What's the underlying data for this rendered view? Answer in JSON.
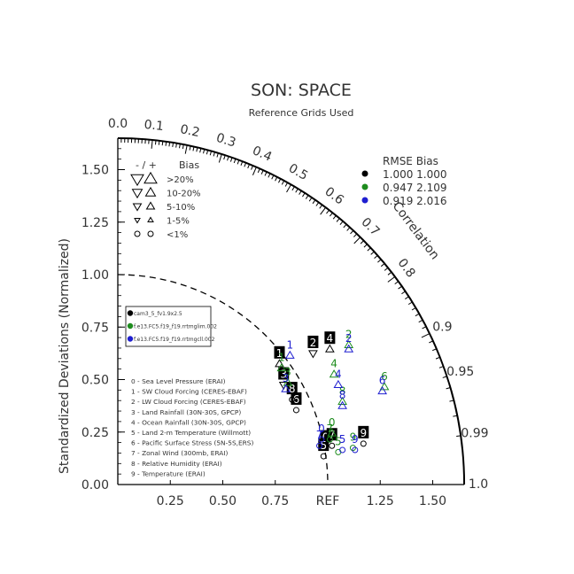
{
  "chart_data": {
    "type": "scatter",
    "title": "SON: SPACE",
    "subtitle": "Reference Grids Used",
    "ylabel": "Standardized Deviations (Normalized)",
    "correlation_label": "Correlation",
    "ref_label": "REF",
    "max_sd": 1.65,
    "ref_sd": 1.0,
    "y_ticks": [
      "0.00",
      "0.25",
      "0.50",
      "0.75",
      "1.00",
      "1.25",
      "1.50"
    ],
    "x_ticks": [
      {
        "v": 0.25,
        "t": "0.25"
      },
      {
        "v": 0.5,
        "t": "0.50"
      },
      {
        "v": 0.75,
        "t": "0.75"
      },
      {
        "v": 1.25,
        "t": "1.25"
      },
      {
        "v": 1.5,
        "t": "1.50"
      }
    ],
    "corr_ticks": [
      {
        "c": 0.0,
        "t": "0.0"
      },
      {
        "c": 0.1,
        "t": "0.1"
      },
      {
        "c": 0.2,
        "t": "0.2"
      },
      {
        "c": 0.3,
        "t": "0.3"
      },
      {
        "c": 0.4,
        "t": "0.4"
      },
      {
        "c": 0.5,
        "t": "0.5"
      },
      {
        "c": 0.6,
        "t": "0.6"
      },
      {
        "c": 0.7,
        "t": "0.7"
      },
      {
        "c": 0.8,
        "t": "0.8"
      },
      {
        "c": 0.9,
        "t": "0.9"
      },
      {
        "c": 0.95,
        "t": "0.95"
      },
      {
        "c": 0.99,
        "t": "0.99"
      },
      {
        "c": 1.0,
        "t": "1.0"
      }
    ],
    "bias_legend": {
      "header_sign": "- / +",
      "header_bias": "Bias",
      "rows": [
        {
          "label": ">20%",
          "kind": "tri",
          "size": 7
        },
        {
          "label": "10-20%",
          "kind": "tri",
          "size": 5.5
        },
        {
          "label": "5-10%",
          "kind": "tri",
          "size": 4.5
        },
        {
          "label": "1-5%",
          "kind": "tri",
          "size": 3
        },
        {
          "label": "<1%",
          "kind": "circle",
          "size": 3
        }
      ]
    },
    "rmse_legend": {
      "header": "RMSE  Bias",
      "rows": [
        {
          "color": "#000000",
          "text": "1.000 1.000"
        },
        {
          "color": "#1e8c1e",
          "text": "0.947 2.109"
        },
        {
          "color": "#1f1fd0",
          "text": "0.919 2.016"
        }
      ]
    },
    "cases": [
      {
        "name": "cam3_5_fv1.9x2.5",
        "color": "#000000"
      },
      {
        "name": "f.e13.FC5.f19_f19.rrtmglim.002",
        "color": "#1e8c1e"
      },
      {
        "name": "f.e13.FC5.f19_f19.rrtmgcll.002",
        "color": "#1f1fd0"
      }
    ],
    "variables": [
      "0 - Sea Level Pressure (ERAI)",
      "1 - SW Cloud Forcing (CERES-EBAF)",
      "2 - LW Cloud Forcing (CERES-EBAF)",
      "3 - Land Rainfall (30N-30S, GPCP)",
      "4 - Ocean Rainfall (30N-30S, GPCP)",
      "5 - Land 2-m Temperature (Willmott)",
      "6 - Pacific Surface Stress (5N-5S,ERS)",
      "7 - Zonal Wind (300mb, ERAI)",
      "8 - Relative Humidity (ERAI)",
      "9 - Temperature (ERAI)"
    ],
    "series": [
      {
        "name": "cam3_5_fv1.9x2.5",
        "color": "#000000",
        "points": [
          {
            "id": "0",
            "x": 0.99,
            "y": 0.2,
            "marker": "circle"
          },
          {
            "id": "1",
            "x": 0.77,
            "y": 0.6,
            "marker": "up"
          },
          {
            "id": "2",
            "x": 0.93,
            "y": 0.65,
            "marker": "down"
          },
          {
            "id": "3",
            "x": 0.79,
            "y": 0.5,
            "marker": "down"
          },
          {
            "id": "4",
            "x": 1.01,
            "y": 0.67,
            "marker": "up"
          },
          {
            "id": "5",
            "x": 0.98,
            "y": 0.16,
            "marker": "circle"
          },
          {
            "id": "6",
            "x": 0.85,
            "y": 0.38,
            "marker": "circle"
          },
          {
            "id": "7",
            "x": 1.02,
            "y": 0.21,
            "marker": "circle"
          },
          {
            "id": "8",
            "x": 0.83,
            "y": 0.43,
            "marker": "circle"
          },
          {
            "id": "9",
            "x": 1.17,
            "y": 0.22,
            "marker": "circle"
          }
        ]
      },
      {
        "name": "f.e13.FC5.f19_f19.rrtmglim.002",
        "color": "#1e8c1e",
        "points": [
          {
            "id": "0",
            "x": 1.02,
            "y": 0.27,
            "marker": "up"
          },
          {
            "id": "1",
            "x": 0.78,
            "y": 0.58,
            "marker": "up"
          },
          {
            "id": "2",
            "x": 1.1,
            "y": 0.69,
            "marker": "up"
          },
          {
            "id": "3",
            "x": 0.81,
            "y": 0.51,
            "marker": "up"
          },
          {
            "id": "4",
            "x": 1.03,
            "y": 0.55,
            "marker": "up"
          },
          {
            "id": "5",
            "x": 1.05,
            "y": 0.18,
            "marker": "circle"
          },
          {
            "id": "6",
            "x": 1.27,
            "y": 0.49,
            "marker": "up"
          },
          {
            "id": "7",
            "x": 1.01,
            "y": 0.24,
            "marker": "circle"
          },
          {
            "id": "8",
            "x": 1.07,
            "y": 0.42,
            "marker": "up"
          },
          {
            "id": "9",
            "x": 1.12,
            "y": 0.2,
            "marker": "circle"
          }
        ]
      },
      {
        "name": "f.e13.FC5.f19_f19.rrtmgcll.002",
        "color": "#1f1fd0",
        "points": [
          {
            "id": "0",
            "x": 0.97,
            "y": 0.24,
            "marker": "circle"
          },
          {
            "id": "1",
            "x": 0.82,
            "y": 0.64,
            "marker": "up"
          },
          {
            "id": "2",
            "x": 1.1,
            "y": 0.67,
            "marker": "up"
          },
          {
            "id": "3",
            "x": 0.8,
            "y": 0.48,
            "marker": "up"
          },
          {
            "id": "4",
            "x": 1.05,
            "y": 0.5,
            "marker": "up"
          },
          {
            "id": "5",
            "x": 1.07,
            "y": 0.19,
            "marker": "circle"
          },
          {
            "id": "6",
            "x": 1.26,
            "y": 0.47,
            "marker": "up"
          },
          {
            "id": "7",
            "x": 0.96,
            "y": 0.21,
            "marker": "circle"
          },
          {
            "id": "8",
            "x": 1.07,
            "y": 0.4,
            "marker": "up"
          },
          {
            "id": "9",
            "x": 1.13,
            "y": 0.19,
            "marker": "circle"
          }
        ]
      }
    ]
  }
}
